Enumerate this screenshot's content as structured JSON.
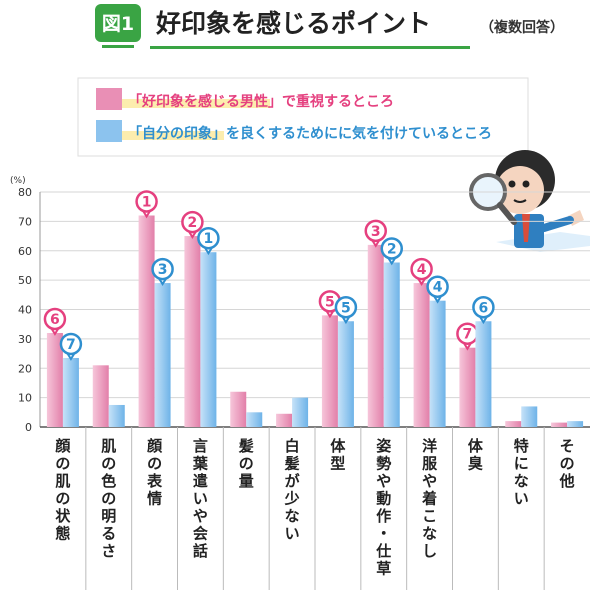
{
  "header": {
    "figure_badge": "図1",
    "title": "好印象を感じるポイント",
    "note": "（複数回答）"
  },
  "colors": {
    "male": "#e98fb5",
    "self": "#8cc3ee",
    "male_label": "#e5407f",
    "self_label": "#2f8fcf",
    "accent_green": "#3aa444"
  },
  "chart_data": {
    "type": "bar",
    "ylabel": "(%)",
    "ylim": [
      0,
      80
    ],
    "yticks": [
      0,
      10,
      20,
      30,
      40,
      50,
      60,
      70,
      80
    ],
    "grid": true,
    "legend_position": "top",
    "categories": [
      "顔の肌の状態",
      "肌の色の明るさ",
      "顔の表情",
      "言葉遣いや会話",
      "髪の量",
      "白髪が少ない",
      "体型",
      "姿勢や動作・仕草",
      "洋服や着こなし",
      "体臭",
      "特にない",
      "その他"
    ],
    "series": [
      {
        "name": "「好印象を感じる男性」で重視するところ",
        "legend_main": "「好印象を感じる男性」",
        "legend_rest": "で重視するところ",
        "values": [
          32,
          21,
          72,
          65,
          12,
          4.5,
          38,
          62,
          49,
          27,
          2,
          1.5
        ],
        "ranks": [
          6,
          null,
          1,
          2,
          null,
          null,
          5,
          3,
          4,
          7,
          null,
          null
        ]
      },
      {
        "name": "「自分の印象」を良くするためにに気を付けているところ",
        "legend_main": "「自分の印象」",
        "legend_rest": "を良くするためにに気を付けているところ",
        "values": [
          23.5,
          7.5,
          49,
          59.5,
          5,
          10,
          36,
          56,
          43,
          36,
          7,
          2
        ],
        "ranks": [
          7,
          null,
          3,
          1,
          null,
          null,
          5,
          2,
          4,
          6,
          null,
          null
        ]
      }
    ]
  }
}
